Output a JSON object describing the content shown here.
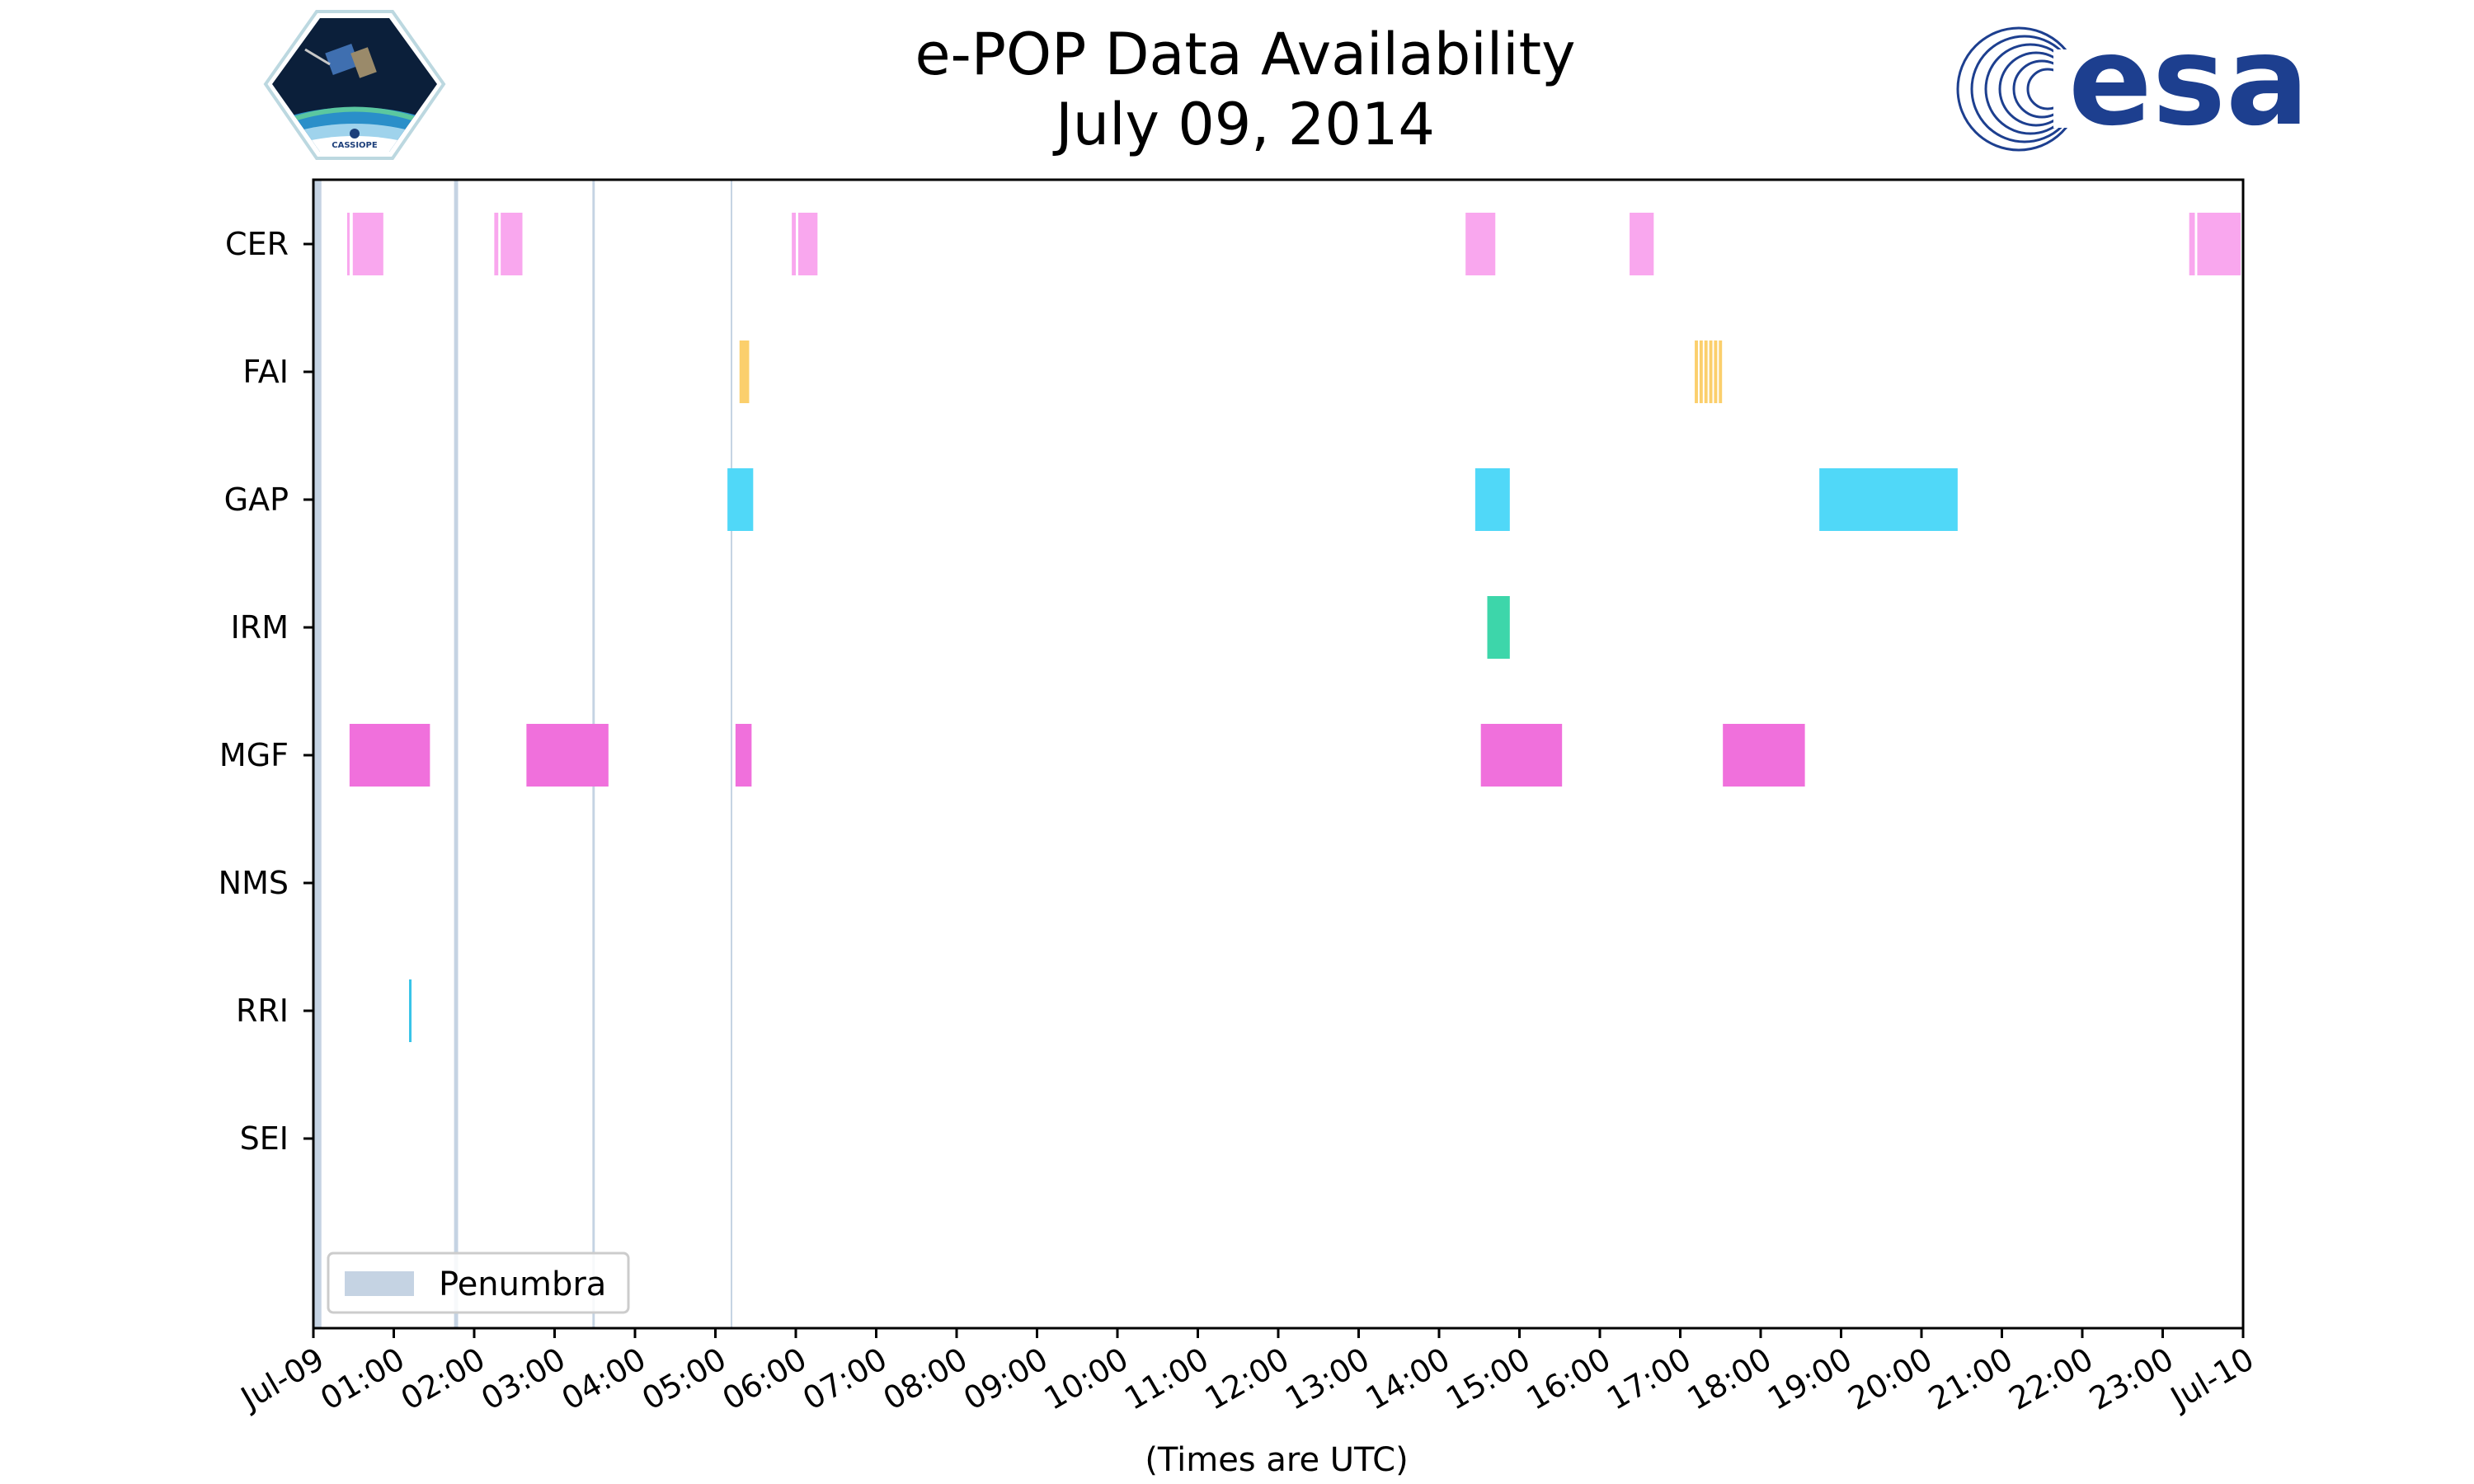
{
  "chart_data": {
    "type": "timeline",
    "title_line1": "e-POP Data Availability",
    "title_line2": "July 09, 2014",
    "xlabel": "(Times are UTC)",
    "xlim_hours": [
      0,
      24
    ],
    "x_tick_labels": [
      "Jul-09",
      "01:00",
      "02:00",
      "03:00",
      "04:00",
      "05:00",
      "06:00",
      "07:00",
      "08:00",
      "09:00",
      "10:00",
      "11:00",
      "12:00",
      "13:00",
      "14:00",
      "15:00",
      "16:00",
      "17:00",
      "18:00",
      "19:00",
      "20:00",
      "21:00",
      "22:00",
      "23:00",
      "Jul-10"
    ],
    "instruments": [
      "CER",
      "FAI",
      "GAP",
      "IRM",
      "MGF",
      "NMS",
      "RRI",
      "SEI"
    ],
    "colors": {
      "CER": "#f9a7ee",
      "FAI": "#fbcf6c",
      "GAP": "#50d8f8",
      "IRM": "#3dd6aa",
      "MGF": "#f070dc",
      "NMS": "#cccccc",
      "RRI": "#38c4e8",
      "SEI": "#cccccc",
      "penumbra": "#c5d3e3"
    },
    "series": [
      {
        "name": "CER",
        "intervals": [
          [
            0.42,
            0.45
          ],
          [
            0.49,
            0.87
          ],
          [
            2.25,
            2.3
          ],
          [
            2.33,
            2.6
          ],
          [
            5.95,
            6.0
          ],
          [
            6.03,
            6.27
          ],
          [
            14.33,
            14.7
          ],
          [
            16.37,
            16.67
          ],
          [
            23.33,
            23.4
          ],
          [
            23.43,
            23.97
          ]
        ]
      },
      {
        "name": "FAI",
        "intervals": [
          [
            5.3,
            5.42
          ],
          [
            17.18,
            17.22
          ],
          [
            17.24,
            17.28
          ],
          [
            17.3,
            17.34
          ],
          [
            17.36,
            17.4
          ],
          [
            17.42,
            17.46
          ],
          [
            17.48,
            17.52
          ]
        ]
      },
      {
        "name": "GAP",
        "intervals": [
          [
            5.15,
            5.47
          ],
          [
            14.45,
            14.88
          ],
          [
            18.73,
            20.45
          ]
        ]
      },
      {
        "name": "IRM",
        "intervals": [
          [
            14.6,
            14.88
          ]
        ]
      },
      {
        "name": "MGF",
        "intervals": [
          [
            0.45,
            1.45
          ],
          [
            2.65,
            3.67
          ],
          [
            5.25,
            5.45
          ],
          [
            14.52,
            15.53
          ],
          [
            17.53,
            18.55
          ]
        ]
      },
      {
        "name": "NMS",
        "intervals": []
      },
      {
        "name": "RRI",
        "intervals": [
          [
            1.19,
            1.21
          ]
        ]
      },
      {
        "name": "SEI",
        "intervals": []
      }
    ],
    "penumbra_intervals": [
      [
        0.0,
        0.1
      ],
      [
        1.75,
        1.8
      ],
      [
        3.47,
        3.5
      ],
      [
        5.19,
        5.2
      ]
    ],
    "legend": {
      "label": "Penumbra",
      "placement": "lower-left"
    }
  },
  "logos": {
    "esa_text": "esa",
    "cassiope_text": "CASSIOPE"
  }
}
